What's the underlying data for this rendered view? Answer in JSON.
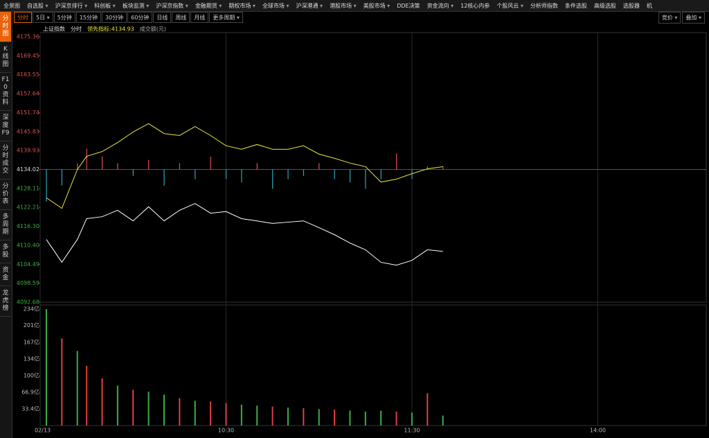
{
  "menu": {
    "items": [
      {
        "text": "全景图",
        "dropdown": false
      },
      {
        "text": "自选股",
        "dropdown": true
      },
      {
        "text": "沪深京排行",
        "dropdown": true
      },
      {
        "text": "科创板",
        "dropdown": true
      },
      {
        "text": "板块监测",
        "dropdown": true
      },
      {
        "text": "沪深京指数",
        "dropdown": true
      },
      {
        "text": "金融期货",
        "dropdown": true
      },
      {
        "text": "期权市场",
        "dropdown": true
      },
      {
        "text": "全球市场",
        "dropdown": true
      },
      {
        "text": "沪深港通",
        "dropdown": true
      },
      {
        "text": "港股市场",
        "dropdown": true
      },
      {
        "text": "美股市场",
        "dropdown": true
      },
      {
        "text": "DDE决策",
        "dropdown": false
      },
      {
        "text": "资金流向",
        "dropdown": true
      },
      {
        "text": "12核心内参",
        "dropdown": false
      },
      {
        "text": "个股风云",
        "dropdown": true
      },
      {
        "text": "分析师指数",
        "dropdown": false
      },
      {
        "text": "条件选股",
        "dropdown": false
      },
      {
        "text": "高级选股",
        "dropdown": false
      },
      {
        "text": "选股器",
        "dropdown": false
      },
      {
        "text": "机",
        "dropdown": false
      }
    ]
  },
  "sidebar": {
    "items": [
      "分时图",
      "K线图",
      "F10资料",
      "深度F9",
      "分时成交",
      "分价表",
      "多周期",
      "多股",
      "资金",
      "龙虎榜"
    ],
    "active": 0
  },
  "toolbar": {
    "periods": [
      {
        "text": "分时",
        "dropdown": false
      },
      {
        "text": "5日",
        "dropdown": true
      },
      {
        "text": "5分钟",
        "dropdown": false
      },
      {
        "text": "15分钟",
        "dropdown": false
      },
      {
        "text": "30分钟",
        "dropdown": false
      },
      {
        "text": "60分钟",
        "dropdown": false
      },
      {
        "text": "日线",
        "dropdown": false
      },
      {
        "text": "周线",
        "dropdown": false
      },
      {
        "text": "月线",
        "dropdown": false
      },
      {
        "text": "更多周期",
        "dropdown": true
      }
    ],
    "active": 0,
    "right": [
      {
        "text": "竞价",
        "dropdown": true
      },
      {
        "text": "叠加",
        "dropdown": true
      }
    ]
  },
  "chart_data": [
    {
      "type": "line",
      "legend": [
        "上证指数",
        "分时",
        "领先指标:4134.93",
        "成交额(元)"
      ],
      "x": [
        2,
        7,
        12,
        15,
        20,
        25,
        30,
        35,
        40,
        45,
        50,
        55,
        60,
        65,
        70,
        75,
        80,
        85,
        90,
        95,
        100,
        105,
        110,
        115,
        120,
        125,
        130
      ],
      "xlim": [
        0,
        215
      ],
      "xticks": [
        {
          "value": 0,
          "label": "02/13"
        },
        {
          "value": 60,
          "label": "10:30"
        },
        {
          "value": 120,
          "label": "11:30"
        },
        {
          "value": 180,
          "label": "14:00"
        }
      ],
      "ylim": [
        4092.68,
        4175.36
      ],
      "yticks": [
        4175.36,
        4169.45,
        4163.55,
        4157.64,
        4151.74,
        4145.83,
        4139.93,
        4134.02,
        4128.11,
        4122.21,
        {
          "value": 4116.3,
          "label": "4116.30"
        },
        {
          "value": 4110.4,
          "label": "4110.40"
        },
        4104.49,
        4098.59,
        4092.68
      ],
      "prev_close": 4134.02,
      "series": [
        {
          "name": "分时",
          "color": "#ffffff",
          "values": [
            4112.2,
            4105.1,
            4112.2,
            4118.7,
            4119.3,
            4121.3,
            4118.0,
            4122.4,
            4118.0,
            4121.3,
            4123.4,
            4120.4,
            4120.9,
            4118.7,
            4118.0,
            4117.2,
            4117.6,
            4118.0,
            4115.9,
            4113.7,
            4111.1,
            4109.0,
            4105.1,
            4104.2,
            4105.7,
            4109.0,
            4108.5
          ]
        },
        {
          "name": "领先指标",
          "color": "#e8e83a",
          "values": [
            4125.2,
            4121.9,
            4134.0,
            4138.1,
            4139.6,
            4142.4,
            4145.7,
            4148.3,
            4145.2,
            4144.6,
            4147.4,
            4144.6,
            4141.4,
            4140.3,
            4141.8,
            4140.3,
            4140.3,
            4141.4,
            4138.8,
            4137.5,
            4136.0,
            4134.9,
            4130.1,
            4131.0,
            4132.7,
            4134.2,
            4134.9
          ]
        }
      ],
      "indicator_bars": {
        "up_color": "#e05050",
        "down_color": "#2aa8b8",
        "values": [
          4124,
          4129,
          4136,
          4140.5,
          4138,
          4136,
          4132,
          4137,
          4129,
          4136,
          4131,
          4138,
          4131,
          4130,
          4136,
          4128,
          4131,
          4132,
          4136,
          4131,
          4130,
          4128,
          4131,
          4139,
          4131,
          4135,
          4135
        ]
      }
    },
    {
      "type": "bar",
      "x": [
        2,
        7,
        12,
        15,
        20,
        25,
        30,
        35,
        40,
        45,
        50,
        55,
        60,
        65,
        70,
        75,
        80,
        85,
        90,
        95,
        100,
        105,
        110,
        115,
        120,
        125,
        130
      ],
      "xlim": [
        0,
        215
      ],
      "ylim": [
        0,
        234
      ],
      "yticks": [
        {
          "value": 33.4,
          "label": "33.4亿"
        },
        {
          "value": 66.9,
          "label": "66.9亿"
        },
        {
          "value": 100,
          "label": "100亿"
        },
        {
          "value": 134,
          "label": "134亿"
        },
        {
          "value": 167,
          "label": "167亿"
        },
        {
          "value": 201,
          "label": "201亿"
        },
        {
          "value": 234,
          "label": "234亿"
        }
      ],
      "values": [
        234,
        175,
        150,
        120,
        95,
        80,
        72,
        68,
        62,
        55,
        50,
        48,
        45,
        42,
        40,
        38,
        36,
        35,
        33,
        32,
        30,
        28,
        30,
        28,
        26,
        65,
        20
      ],
      "colors": [
        "#3cb043",
        "#e04040",
        "#3cb043",
        "#e04040",
        "#e04040",
        "#3cb043",
        "#e04040",
        "#3cb043",
        "#3cb043",
        "#e04040",
        "#3cb043",
        "#e04040",
        "#e04040",
        "#3cb043",
        "#3cb043",
        "#e04040",
        "#3cb043",
        "#e04040",
        "#3cb043",
        "#e04040",
        "#3cb043",
        "#3cb043",
        "#3cb043",
        "#e04040",
        "#3cb043",
        "#e04040",
        "#3cb043"
      ]
    }
  ]
}
